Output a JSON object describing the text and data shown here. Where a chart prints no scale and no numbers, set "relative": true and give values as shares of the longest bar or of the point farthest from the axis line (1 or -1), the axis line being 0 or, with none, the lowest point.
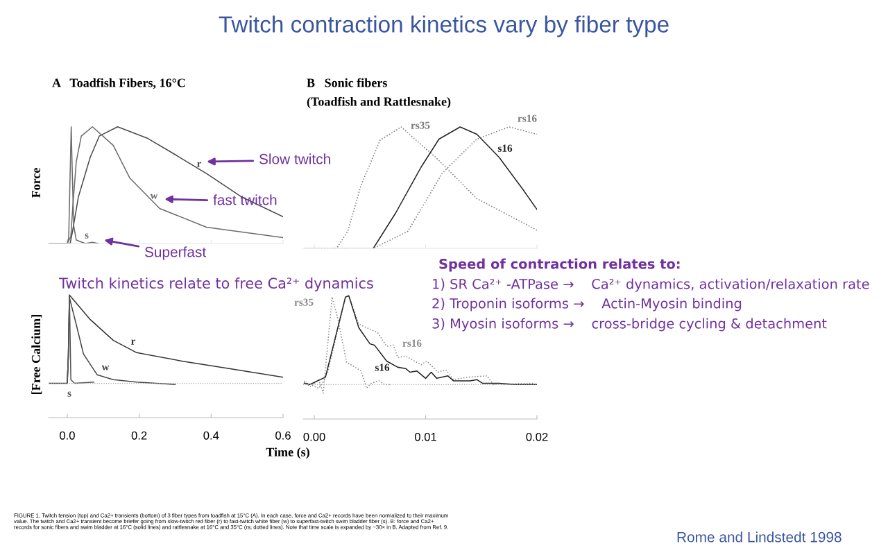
{
  "chart_data": [
    {
      "type": "line",
      "title": "A   Toadfish Fibers, 16°C",
      "ylabel": "Force",
      "relative": true,
      "tick_labels": false,
      "grid": false,
      "xlim": [
        -0.052,
        0.6
      ],
      "xticks": [
        {
          "value": 0,
          "label": null
        },
        {
          "value": 0.2,
          "label": null
        },
        {
          "value": 0.4,
          "label": null
        },
        {
          "value": 0.6,
          "label": null
        }
      ],
      "series": [
        {
          "name": "r",
          "color": "#4a4a4a",
          "line_style": "solid",
          "x": [
            -0.052,
            0.0,
            0.008,
            0.015,
            0.031,
            0.064,
            0.089,
            0.14,
            0.224,
            0.29,
            0.387,
            0.484,
            0.6
          ],
          "values": [
            0,
            0,
            0.0,
            0.11,
            0.4,
            0.74,
            0.92,
            1.0,
            0.9,
            0.78,
            0.6,
            0.4,
            0.23
          ]
        },
        {
          "name": "w",
          "color": "#6a6a6a",
          "line_style": "solid",
          "x": [
            -0.052,
            0.0,
            0.01,
            0.015,
            0.025,
            0.039,
            0.07,
            0.128,
            0.174,
            0.257,
            0.387,
            0.6
          ],
          "values": [
            0,
            0,
            0.06,
            0.3,
            0.7,
            0.92,
            1.0,
            0.84,
            0.56,
            0.3,
            0.14,
            0.05
          ]
        },
        {
          "name": "s",
          "color": "#6a6a6a",
          "line_style": "solid",
          "x": [
            -0.052,
            0.0,
            0.004,
            0.008,
            0.011,
            0.014,
            0.018,
            0.025,
            0.05,
            0.07,
            0.087
          ],
          "values": [
            0,
            0,
            0.05,
            0.6,
            1.0,
            0.6,
            0.15,
            0.03,
            0.0,
            0.01,
            0.0
          ]
        }
      ],
      "annotations": [
        "Slow twitch",
        "fast twitch",
        "Superfast"
      ]
    },
    {
      "type": "line",
      "title": "B   Sonic fibers",
      "subtitle": "(Toadfish and Rattlesnake)",
      "relative": true,
      "tick_labels": false,
      "grid": false,
      "xlim": [
        -0.001,
        0.02
      ],
      "xticks": [
        {
          "value": 0,
          "label": null
        },
        {
          "value": 0.01,
          "label": null
        },
        {
          "value": 0.02,
          "label": null
        }
      ],
      "series": [
        {
          "name": "rs35",
          "color": "#777777",
          "line_style": "dotted",
          "x": [
            -0.0009,
            0.002,
            0.003,
            0.0042,
            0.0059,
            0.0078,
            0.0109,
            0.0146,
            0.02
          ],
          "values": [
            0,
            0,
            0.14,
            0.52,
            0.89,
            1.0,
            0.75,
            0.41,
            0.15
          ]
        },
        {
          "name": "s16",
          "color": "#222222",
          "line_style": "solid",
          "x": [
            0.0053,
            0.0073,
            0.0096,
            0.0112,
            0.0131,
            0.0146,
            0.0166,
            0.0187,
            0.02
          ],
          "values": [
            0,
            0.29,
            0.67,
            0.9,
            1.0,
            0.94,
            0.75,
            0.49,
            0.32
          ]
        },
        {
          "name": "rs16",
          "color": "#777777",
          "line_style": "dotted",
          "x": [
            -0.0009,
            0.0053,
            0.0084,
            0.0115,
            0.0146,
            0.0175,
            0.02
          ],
          "values": [
            0,
            0,
            0.14,
            0.62,
            0.9,
            1.0,
            0.94
          ]
        }
      ]
    },
    {
      "type": "line",
      "ylabel": "[Free Calcium]",
      "xlabel": "Time (s)",
      "relative": true,
      "tick_labels": "x",
      "grid": false,
      "xlim": [
        -0.052,
        0.6
      ],
      "xticks": [
        {
          "value": 0,
          "label": "0.0"
        },
        0.2,
        0.4,
        {
          "value": 0.6,
          "label": "0.6"
        }
      ],
      "ref_lines": [
        {
          "axis": "y",
          "value": 0.28,
          "label": null,
          "color": "#aaaaaa",
          "line_style": "dotted"
        }
      ],
      "series": [
        {
          "name": "r",
          "color": "#333333",
          "line_style": "solid",
          "x": [
            -0.052,
            0.0,
            0.003,
            0.006,
            0.064,
            0.128,
            0.193,
            0.321,
            0.45,
            0.6
          ],
          "values": [
            0.28,
            0.28,
            0.5,
            1.0,
            0.8,
            0.63,
            0.53,
            0.46,
            0.4,
            0.33
          ]
        },
        {
          "name": "w",
          "color": "#444444",
          "line_style": "solid",
          "x": [
            0.0,
            0.003,
            0.006,
            0.025,
            0.045,
            0.083,
            0.128,
            0.193,
            0.3
          ],
          "values": [
            0.28,
            0.5,
            0.98,
            0.76,
            0.52,
            0.35,
            0.31,
            0.29,
            0.27
          ]
        },
        {
          "name": "s",
          "color": "#555555",
          "line_style": "solid",
          "x": [
            0.0,
            0.003,
            0.006,
            0.01,
            0.02,
            0.074
          ],
          "values": [
            0.28,
            0.5,
            1.0,
            0.31,
            0.28,
            0.29
          ]
        }
      ]
    },
    {
      "type": "line",
      "relative": true,
      "tick_labels": "x",
      "grid": false,
      "xlim": [
        -0.001,
        0.02
      ],
      "xticks": [
        {
          "value": 0,
          "label": "0.00"
        },
        0.01,
        {
          "value": 0.02,
          "label": "0.02"
        }
      ],
      "ref_lines": [
        {
          "axis": "y",
          "value": 0.28,
          "label": null,
          "color": "#aaaaaa",
          "line_style": "dotted"
        }
      ],
      "series": [
        {
          "name": "rs35",
          "color": "#888888",
          "line_style": "dotted",
          "x": [
            -0.0009,
            -0.0004,
            0.0004,
            0.0008,
            0.0016,
            0.0021,
            0.0029,
            0.0035,
            0.0042,
            0.0047,
            0.0051,
            0.0058,
            0.0063,
            0.0068
          ],
          "values": [
            0.31,
            0.26,
            0.32,
            0.21,
            0.99,
            0.82,
            0.46,
            0.43,
            0.39,
            0.25,
            0.29,
            0.31,
            0.28,
            0.28
          ]
        },
        {
          "name": "rs16",
          "color": "#888888",
          "line_style": "dotted",
          "x": [
            -0.0009,
            0.0004,
            0.0008,
            0.0012,
            0.0028,
            0.0031,
            0.004,
            0.0057,
            0.0065,
            0.0071,
            0.0075,
            0.0082,
            0.0096,
            0.0101,
            0.0111,
            0.0118,
            0.0125,
            0.0138,
            0.0155,
            0.0161,
            0.0196,
            0.02
          ],
          "values": [
            0.3,
            0.25,
            0.3,
            0.38,
            0.99,
            1.0,
            0.77,
            0.7,
            0.59,
            0.6,
            0.5,
            0.51,
            0.44,
            0.47,
            0.38,
            0.4,
            0.32,
            0.34,
            0.35,
            0.28,
            0.29,
            0.28
          ]
        },
        {
          "name": "s16",
          "color": "#222222",
          "line_style": "solid",
          "x": [
            -0.0009,
            -0.0004,
            0.001,
            0.0028,
            0.0031,
            0.004,
            0.005,
            0.0054,
            0.0065,
            0.0075,
            0.0082,
            0.0086,
            0.0092,
            0.01,
            0.0105,
            0.011,
            0.012,
            0.0125,
            0.014,
            0.0146,
            0.0151,
            0.0166,
            0.018,
            0.02
          ],
          "values": [
            0.29,
            0.28,
            0.34,
            0.99,
            1.0,
            0.74,
            0.61,
            0.6,
            0.47,
            0.42,
            0.41,
            0.38,
            0.39,
            0.33,
            0.38,
            0.33,
            0.35,
            0.31,
            0.31,
            0.32,
            0.29,
            0.29,
            0.28,
            0.28
          ]
        }
      ]
    },
    {
      "type": "other",
      "title": "Twitch contraction kinetics vary by fiber type",
      "annotations": [
        "Twitch kinetics relate to free Ca²⁺ dynamics",
        "Speed of contraction relates to:",
        "1) SR Ca²⁺ -ATPase →    Ca²⁺ dynamics, activation/relaxation rate",
        "2) Troponin isoforms →    Actin-Myosin binding",
        "3) Myosin isoforms →    cross-bridge cycling & detachment",
        "FIGURE 1. Twitch tension (top) and Ca2+ transients (bottom) of 3 fiber types from toadfish at 15°C (A). In each case, force and Ca2+ records have been normalized to their maximum\nvalue. The twitch and Ca2+ transient become briefer going from slow-twitch red fiber (r) to fast-twitch white fiber (w) to superfast-twitch swim bladder fiber (s). B: force and Ca2+\nrecords for sonic fibers and swim bladder at 16°C (solid lines) and rattlesnake at 16°C and 35°C (rs; dotted lines). Note that time scale is expanded by ~30× in B. Adapted from Ref. 9.",
        "Rome and Lindstedt 1998"
      ]
    }
  ]
}
